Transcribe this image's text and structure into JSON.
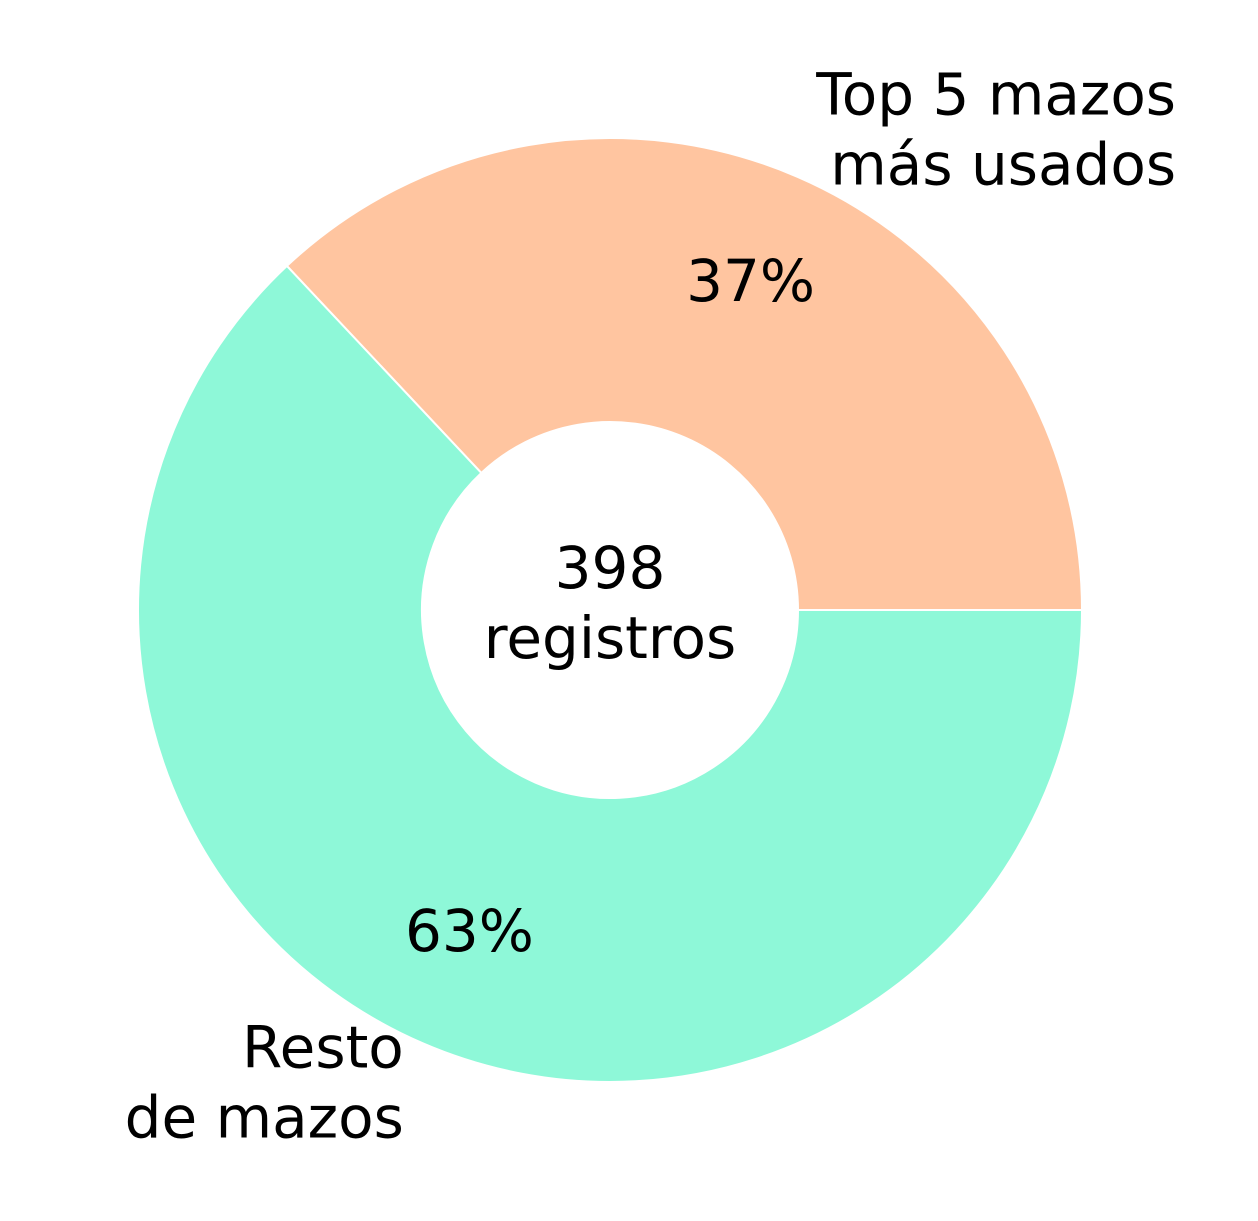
{
  "chart_data": {
    "type": "donut",
    "labels": [
      [
        "Top 5 mazos",
        "más usados"
      ],
      [
        "Resto",
        "de mazos"
      ]
    ],
    "values": [
      37,
      63
    ],
    "value_labels": [
      "37%",
      "63%"
    ],
    "colors": [
      "#ffc5a0",
      "#8ef8d8"
    ],
    "total": 398,
    "total_label": "registros"
  }
}
